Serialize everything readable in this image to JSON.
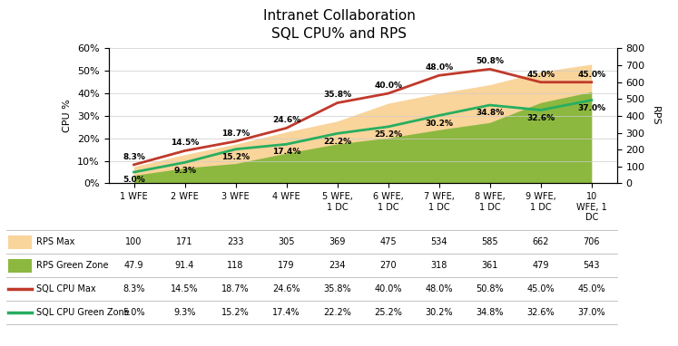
{
  "chart_data": {
    "type": "line",
    "title": "Intranet Collaboration",
    "subtitle": "SQL CPU% and RPS",
    "categories": [
      "1 WFE",
      "2 WFE",
      "3 WFE",
      "4 WFE",
      "5 WFE,\n1 DC",
      "6 WFE,\n1 DC",
      "7 WFE,\n1 DC",
      "8 WFE,\n1 DC",
      "9 WFE,\n1 DC",
      "10\nWFE, 1\nDC"
    ],
    "y_label": "CPU %",
    "y2_label": "RPS",
    "ylim": [
      0,
      60
    ],
    "yticks": [
      {
        "value": 0,
        "label": "0%"
      },
      {
        "value": 10,
        "label": "10%"
      },
      {
        "value": 20,
        "label": "20%"
      },
      {
        "value": 30,
        "label": "30%"
      },
      {
        "value": 40,
        "label": "40%"
      },
      {
        "value": 50,
        "label": "50%"
      },
      {
        "value": 60,
        "label": "60%"
      }
    ],
    "y2lim": [
      0,
      800
    ],
    "y2ticks": [
      0,
      100,
      200,
      300,
      400,
      500,
      600,
      700,
      800
    ],
    "grid": true,
    "legend": "below",
    "series": [
      {
        "name": "RPS Max",
        "type": "area",
        "axis": "y2",
        "color": "#F9D49B",
        "values": [
          100,
          171,
          233,
          305,
          369,
          475,
          534,
          585,
          662,
          706
        ]
      },
      {
        "name": "RPS Green Zone",
        "type": "area",
        "axis": "y2",
        "color": "#8CB840",
        "values": [
          47.9,
          91.4,
          118,
          179,
          234,
          270,
          318,
          361,
          479,
          543
        ]
      },
      {
        "name": "SQL CPU Max",
        "type": "line",
        "color": "#C0392B",
        "data_labels": true,
        "values": [
          8.3,
          14.5,
          18.7,
          24.6,
          35.8,
          40.0,
          48.0,
          50.8,
          45.0,
          45.0
        ],
        "value_labels": [
          "8.3%",
          "14.5%",
          "18.7%",
          "24.6%",
          "35.8%",
          "40.0%",
          "48.0%",
          "50.8%",
          "45.0%",
          "45.0%"
        ]
      },
      {
        "name": "SQL CPU Green Zone",
        "type": "line",
        "color": "#27AE60",
        "data_labels": true,
        "values": [
          5.0,
          9.3,
          15.2,
          17.4,
          22.2,
          25.2,
          30.2,
          34.8,
          32.6,
          37.0
        ],
        "value_labels": [
          "5.0%",
          "9.3%",
          "15.2%",
          "17.4%",
          "22.2%",
          "25.2%",
          "30.2%",
          "34.8%",
          "32.6%",
          "37.0%"
        ]
      }
    ]
  }
}
